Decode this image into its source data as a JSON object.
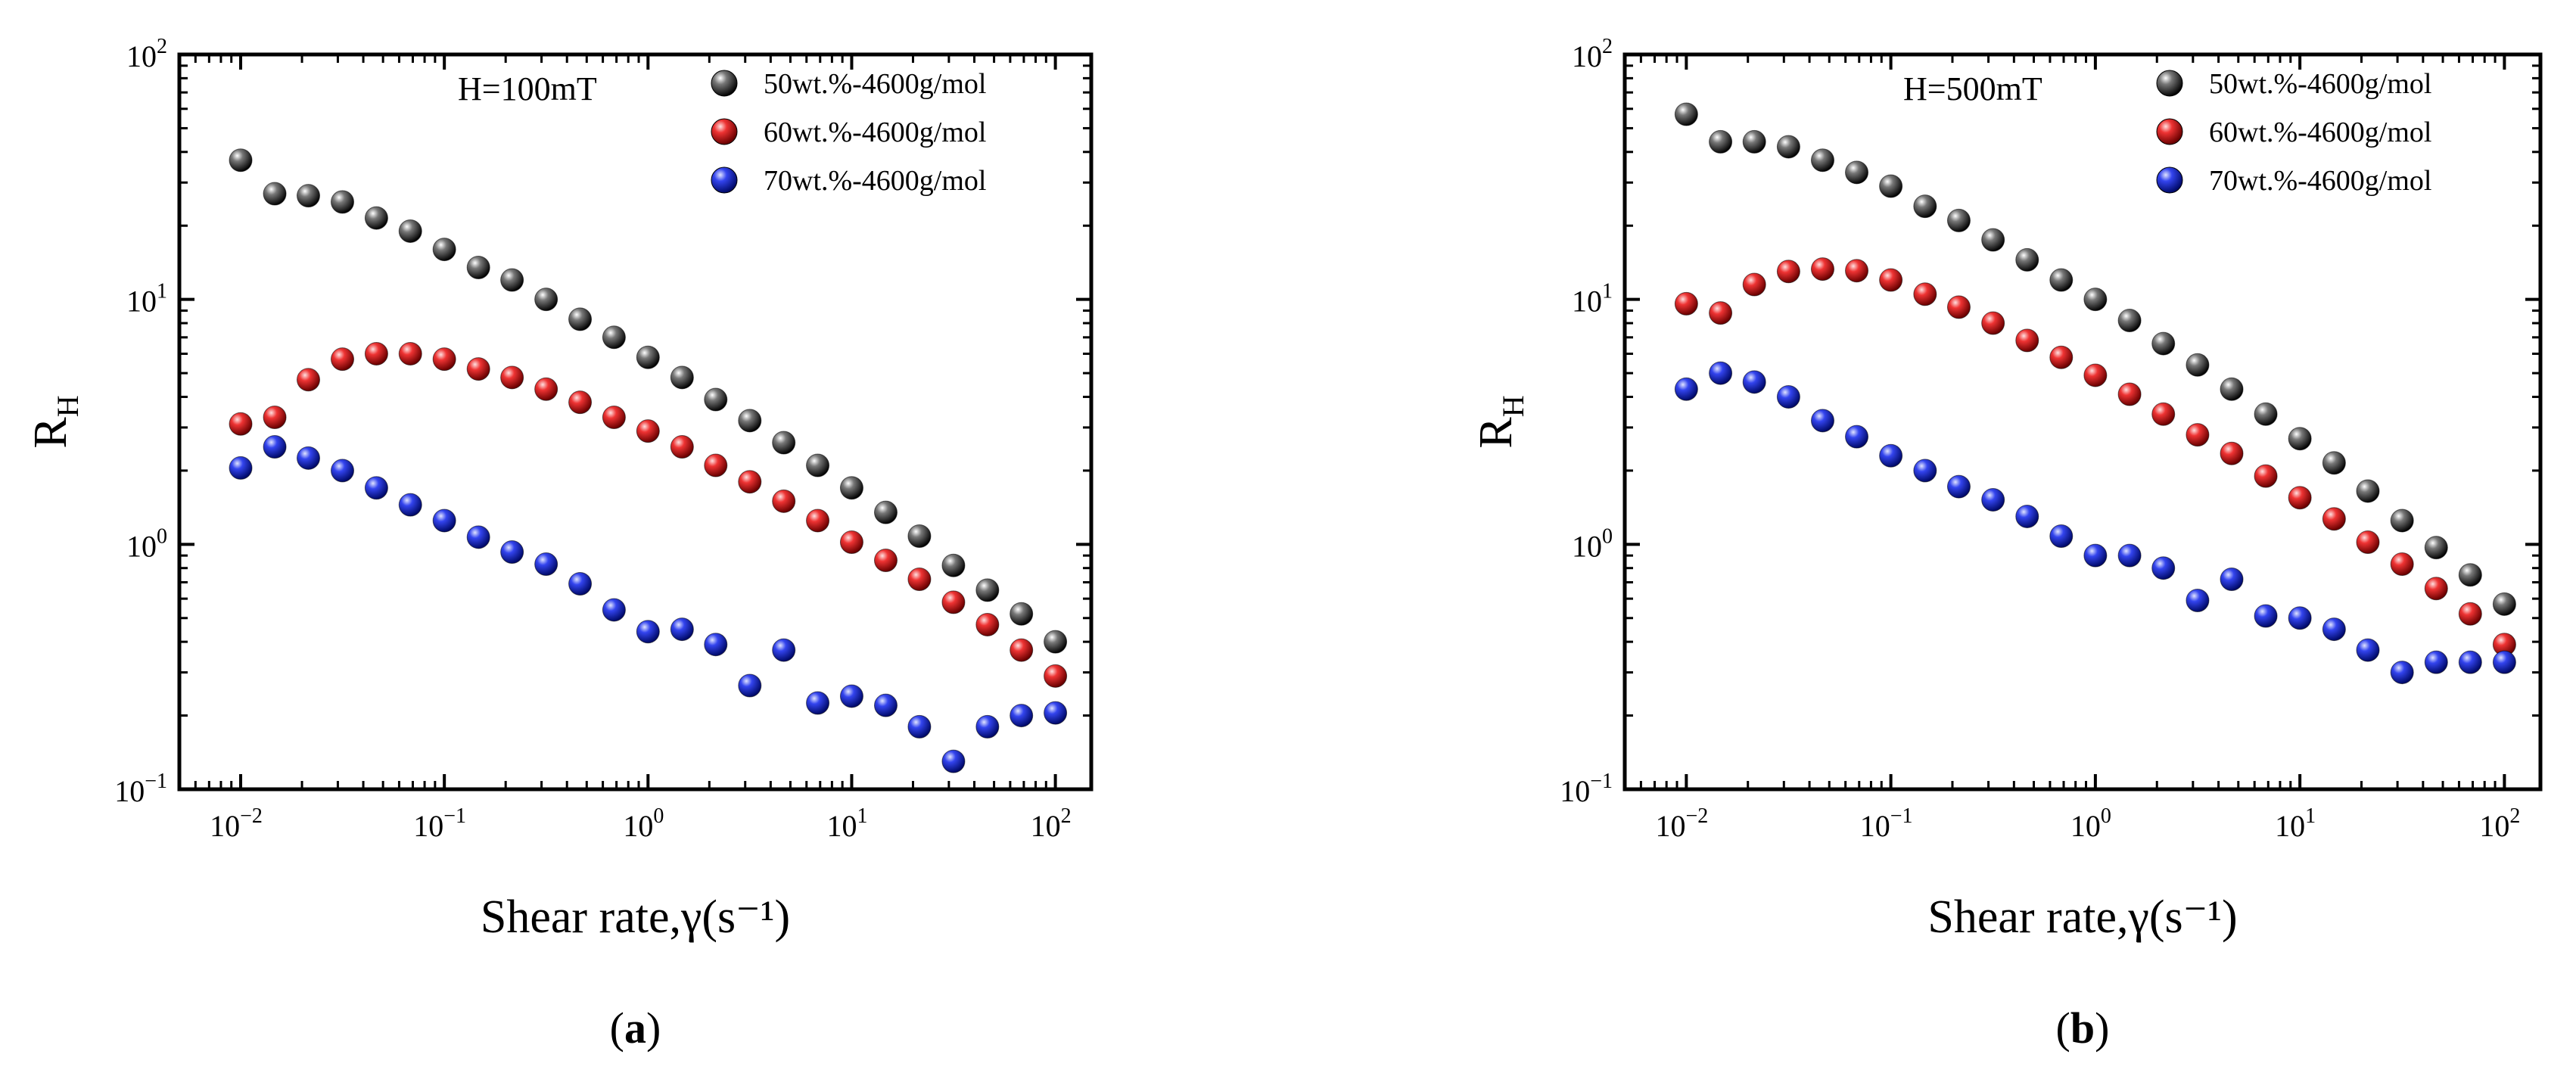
{
  "chart_data": [
    {
      "type": "scatter",
      "scale": "log-log",
      "panel_label": "a",
      "annotation": "H=100mT",
      "xlabel": "Shear rate,γ(s⁻¹)",
      "ylabel": "R_H",
      "xlim": [
        0.005,
        150
      ],
      "ylim": [
        0.1,
        100
      ],
      "x_tick_labels": [
        {
          "base": "10",
          "exp": "−2"
        },
        {
          "base": "10",
          "exp": "−1"
        },
        {
          "base": "10",
          "exp": "0"
        },
        {
          "base": "10",
          "exp": "1"
        },
        {
          "base": "10",
          "exp": "2"
        }
      ],
      "y_tick_labels": [
        {
          "base": "10",
          "exp": "−1"
        },
        {
          "base": "10",
          "exp": "0"
        },
        {
          "base": "10",
          "exp": "1"
        },
        {
          "base": "10",
          "exp": "2"
        }
      ],
      "x": [
        0.01,
        0.0147,
        0.0215,
        0.0316,
        0.0464,
        0.0681,
        0.1,
        0.147,
        0.215,
        0.316,
        0.464,
        0.681,
        1,
        1.47,
        2.15,
        3.16,
        4.64,
        6.81,
        10,
        14.7,
        21.5,
        31.6,
        46.4,
        68.1,
        100
      ],
      "legend_position": "top-right",
      "series": [
        {
          "name": "50wt.%-4600g/mol",
          "color": "#111111",
          "values": [
            37,
            27,
            26.5,
            25,
            21.5,
            19,
            16,
            13.5,
            12,
            10,
            8.3,
            7,
            5.8,
            4.8,
            3.9,
            3.2,
            2.6,
            2.1,
            1.7,
            1.35,
            1.08,
            0.82,
            0.65,
            0.52,
            0.4
          ]
        },
        {
          "name": "60wt.%-4600g/mol",
          "color": "#d81e1e",
          "values": [
            3.1,
            3.3,
            4.7,
            5.7,
            6.0,
            6.0,
            5.7,
            5.2,
            4.8,
            4.3,
            3.8,
            3.3,
            2.9,
            2.5,
            2.1,
            1.8,
            1.5,
            1.25,
            1.02,
            0.86,
            0.72,
            0.58,
            0.47,
            0.37,
            0.29
          ]
        },
        {
          "name": "70wt.%-4600g/mol",
          "color": "#1a2ecc",
          "values": [
            2.05,
            2.5,
            2.25,
            2.0,
            1.7,
            1.45,
            1.25,
            1.07,
            0.93,
            0.83,
            0.69,
            0.54,
            0.44,
            0.45,
            0.39,
            0.265,
            0.37,
            0.225,
            0.24,
            0.22,
            0.18,
            0.13,
            0.18,
            0.2,
            0.205
          ]
        }
      ]
    },
    {
      "type": "scatter",
      "scale": "log-log",
      "panel_label": "b",
      "annotation": "H=500mT",
      "xlabel": "Shear rate,γ(s⁻¹)",
      "ylabel": "R_H",
      "xlim": [
        0.005,
        150
      ],
      "ylim": [
        0.1,
        100
      ],
      "x_tick_labels": [
        {
          "base": "10",
          "exp": "−2"
        },
        {
          "base": "10",
          "exp": "−1"
        },
        {
          "base": "10",
          "exp": "0"
        },
        {
          "base": "10",
          "exp": "1"
        },
        {
          "base": "10",
          "exp": "2"
        }
      ],
      "y_tick_labels": [
        {
          "base": "10",
          "exp": "−1"
        },
        {
          "base": "10",
          "exp": "0"
        },
        {
          "base": "10",
          "exp": "1"
        },
        {
          "base": "10",
          "exp": "2"
        }
      ],
      "x": [
        0.01,
        0.0147,
        0.0215,
        0.0316,
        0.0464,
        0.0681,
        0.1,
        0.147,
        0.215,
        0.316,
        0.464,
        0.681,
        1,
        1.47,
        2.15,
        3.16,
        4.64,
        6.81,
        10,
        14.7,
        21.5,
        31.6,
        46.4,
        68.1,
        100
      ],
      "legend_position": "top-right",
      "series": [
        {
          "name": "50wt.%-4600g/mol",
          "color": "#111111",
          "values": [
            57,
            44,
            44,
            42,
            37,
            33,
            29,
            24,
            21,
            17.5,
            14.5,
            12,
            10,
            8.2,
            6.6,
            5.4,
            4.3,
            3.4,
            2.7,
            2.15,
            1.65,
            1.25,
            0.97,
            0.75,
            0.57
          ]
        },
        {
          "name": "60wt.%-4600g/mol",
          "color": "#d81e1e",
          "values": [
            9.6,
            8.8,
            11.5,
            13,
            13.3,
            13.1,
            12,
            10.5,
            9.3,
            8,
            6.8,
            5.8,
            4.9,
            4.1,
            3.4,
            2.8,
            2.35,
            1.9,
            1.55,
            1.27,
            1.02,
            0.83,
            0.66,
            0.52,
            0.39
          ]
        },
        {
          "name": "70wt.%-4600g/mol",
          "color": "#1a2ecc",
          "values": [
            4.3,
            5.0,
            4.6,
            4.0,
            3.2,
            2.75,
            2.3,
            2.0,
            1.72,
            1.52,
            1.3,
            1.08,
            0.9,
            0.9,
            0.8,
            0.59,
            0.72,
            0.51,
            0.5,
            0.45,
            0.37,
            0.3,
            0.33,
            0.33,
            0.33
          ]
        }
      ]
    }
  ]
}
